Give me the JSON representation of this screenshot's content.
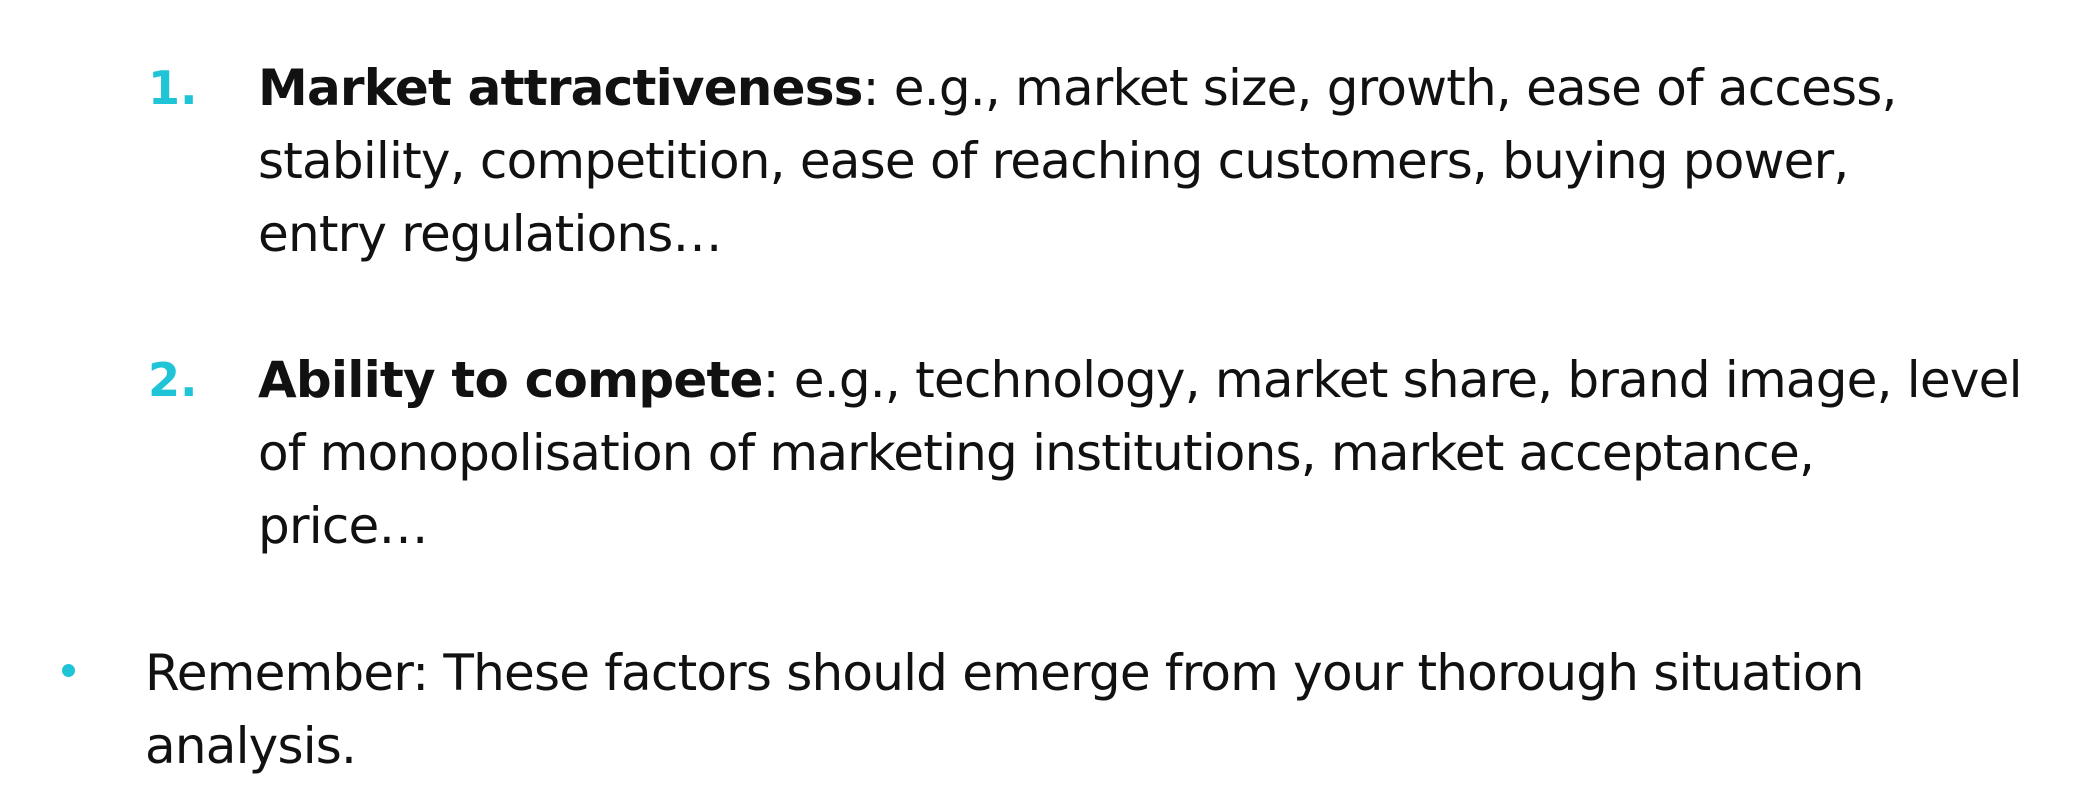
{
  "colors": {
    "accent": "#1fc4d6",
    "text": "#111111"
  },
  "items": [
    {
      "marker": "1.",
      "term": "Market attractiveness",
      "lines": [
        ": e.g., market size, growth, ease of access,",
        "stability, competition, ease of reaching customers, buying power,",
        "entry regulations…"
      ]
    },
    {
      "marker": "2.",
      "term": "Ability to compete",
      "lines": [
        ": e.g., technology, market share, brand image, level",
        "of monopolisation of marketing institutions, market acceptance,",
        "price…"
      ]
    }
  ],
  "bullet": {
    "lines": [
      "Remember: These factors should emerge from your thorough situation",
      "analysis."
    ]
  }
}
